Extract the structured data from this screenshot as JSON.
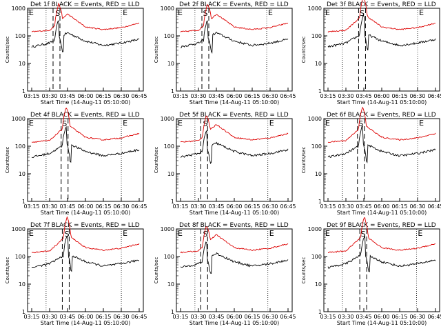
{
  "figure": {
    "x_ticks": [
      "03:15",
      "03:30",
      "03:45",
      "06:00",
      "06:15",
      "06:30",
      "06:45"
    ],
    "y_ticks": [
      "1",
      "10",
      "100",
      "1000"
    ],
    "xlabel": "Start Time (14-Aug-11 05:10:00)",
    "ylabel": "Counts/sec",
    "legend_text": "BLACK = Events, RED = LLD",
    "marker_E": "E",
    "marker_S": "S",
    "colors": {
      "events": "#000000",
      "lld": "#dd0000"
    }
  },
  "chart_data": [
    {
      "type": "line",
      "title": "Det 1f BLACK = Events, RED = LLD",
      "ylabel": "Counts/sec",
      "xlabel": "Start Time (14-Aug-11 05:10:00)",
      "x": [
        "03:15",
        "03:30",
        "03:45",
        "06:00",
        "06:15",
        "06:30",
        "06:45"
      ],
      "y_scale": "log",
      "ylim": [
        1,
        1000
      ],
      "series": [
        {
          "name": "Events",
          "color": "#000000",
          "values": [
            40,
            55,
            130,
            65,
            45,
            55,
            75
          ]
        },
        {
          "name": "LLD",
          "color": "#dd0000",
          "values": [
            140,
            160,
            620,
            210,
            170,
            200,
            290
          ]
        }
      ]
    },
    {
      "type": "line",
      "title": "Det 2f BLACK = Events, RED = LLD",
      "ylabel": "Counts/sec",
      "xlabel": "Start Time (14-Aug-11 05:10:00)",
      "x": [
        "03:15",
        "03:30",
        "03:45",
        "06:00",
        "06:15",
        "06:30",
        "06:45"
      ],
      "y_scale": "log",
      "ylim": [
        1,
        1000
      ],
      "series": [
        {
          "name": "Events",
          "color": "#000000",
          "values": [
            40,
            55,
            130,
            65,
            45,
            55,
            75
          ]
        },
        {
          "name": "LLD",
          "color": "#dd0000",
          "values": [
            140,
            160,
            620,
            210,
            170,
            200,
            290
          ]
        }
      ]
    },
    {
      "type": "line",
      "title": "Det 3f BLACK = Events, RED = LLD",
      "ylabel": "Counts/sec",
      "xlabel": "Start Time (14-Aug-11 05:10:00)",
      "x": [
        "03:15",
        "03:30",
        "03:45",
        "06:00",
        "06:15",
        "06:30",
        "06:45"
      ],
      "y_scale": "log",
      "ylim": [
        1,
        1000
      ],
      "series": [
        {
          "name": "Events",
          "color": "#000000",
          "values": [
            40,
            55,
            130,
            65,
            45,
            55,
            75
          ]
        },
        {
          "name": "LLD",
          "color": "#dd0000",
          "values": [
            140,
            160,
            620,
            210,
            170,
            200,
            290
          ]
        }
      ]
    },
    {
      "type": "line",
      "title": "Det 4f BLACK = Events, RED = LLD",
      "ylabel": "Counts/sec",
      "xlabel": "Start Time (14-Aug-11 05:10:00)",
      "x": [
        "03:15",
        "03:30",
        "03:45",
        "06:00",
        "06:15",
        "06:30",
        "06:45"
      ],
      "y_scale": "log",
      "ylim": [
        1,
        1000
      ],
      "series": [
        {
          "name": "Events",
          "color": "#000000",
          "values": [
            40,
            55,
            130,
            65,
            45,
            55,
            75
          ]
        },
        {
          "name": "LLD",
          "color": "#dd0000",
          "values": [
            140,
            160,
            620,
            210,
            170,
            200,
            290
          ]
        }
      ]
    },
    {
      "type": "line",
      "title": "Det 5f BLACK = Events, RED = LLD",
      "ylabel": "Counts/sec",
      "xlabel": "Start Time (14-Aug-11 05:10:00)",
      "x": [
        "03:15",
        "03:30",
        "03:45",
        "06:00",
        "06:15",
        "06:30",
        "06:45"
      ],
      "y_scale": "log",
      "ylim": [
        1,
        1000
      ],
      "series": [
        {
          "name": "Events",
          "color": "#000000",
          "values": [
            40,
            55,
            130,
            65,
            45,
            55,
            75
          ]
        },
        {
          "name": "LLD",
          "color": "#dd0000",
          "values": [
            140,
            160,
            620,
            210,
            170,
            200,
            290
          ]
        }
      ]
    },
    {
      "type": "line",
      "title": "Det 6f BLACK = Events, RED = LLD",
      "ylabel": "Counts/sec",
      "xlabel": "Start Time (14-Aug-11 05:10:00)",
      "x": [
        "03:15",
        "03:30",
        "03:45",
        "06:00",
        "06:15",
        "06:30",
        "06:45"
      ],
      "y_scale": "log",
      "ylim": [
        1,
        1000
      ],
      "series": [
        {
          "name": "Events",
          "color": "#000000",
          "values": [
            40,
            55,
            130,
            65,
            45,
            55,
            75
          ]
        },
        {
          "name": "LLD",
          "color": "#dd0000",
          "values": [
            140,
            160,
            620,
            210,
            170,
            200,
            290
          ]
        }
      ]
    },
    {
      "type": "line",
      "title": "Det 7f BLACK = Events, RED = LLD",
      "ylabel": "Counts/sec",
      "xlabel": "Start Time (14-Aug-11 05:10:00)",
      "x": [
        "03:15",
        "03:30",
        "03:45",
        "06:00",
        "06:15",
        "06:30",
        "06:45"
      ],
      "y_scale": "log",
      "ylim": [
        1,
        1000
      ],
      "series": [
        {
          "name": "Events",
          "color": "#000000",
          "values": [
            40,
            55,
            130,
            65,
            45,
            55,
            75
          ]
        },
        {
          "name": "LLD",
          "color": "#dd0000",
          "values": [
            140,
            160,
            620,
            210,
            170,
            200,
            290
          ]
        }
      ]
    },
    {
      "type": "line",
      "title": "Det 8f BLACK = Events, RED = LLD",
      "ylabel": "Counts/sec",
      "xlabel": "Start Time (14-Aug-11 05:10:00)",
      "x": [
        "03:15",
        "03:30",
        "03:45",
        "06:00",
        "06:15",
        "06:30",
        "06:45"
      ],
      "y_scale": "log",
      "ylim": [
        1,
        1000
      ],
      "series": [
        {
          "name": "Events",
          "color": "#000000",
          "values": [
            40,
            55,
            130,
            65,
            45,
            55,
            75
          ]
        },
        {
          "name": "LLD",
          "color": "#dd0000",
          "values": [
            140,
            160,
            620,
            210,
            170,
            200,
            290
          ]
        }
      ]
    },
    {
      "type": "line",
      "title": "Det 9f BLACK = Events, RED = LLD",
      "ylabel": "Counts/sec",
      "xlabel": "Start Time (14-Aug-11 05:10:00)",
      "x": [
        "03:15",
        "03:30",
        "03:45",
        "06:00",
        "06:15",
        "06:30",
        "06:45"
      ],
      "y_scale": "log",
      "ylim": [
        1,
        1000
      ],
      "series": [
        {
          "name": "Events",
          "color": "#000000",
          "values": [
            40,
            55,
            130,
            65,
            45,
            55,
            75
          ]
        },
        {
          "name": "LLD",
          "color": "#dd0000",
          "values": [
            140,
            160,
            620,
            210,
            170,
            200,
            290
          ]
        }
      ]
    }
  ]
}
